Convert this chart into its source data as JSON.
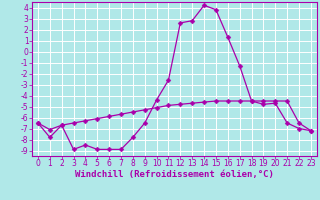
{
  "xlabel": "Windchill (Refroidissement éolien,°C)",
  "x": [
    0,
    1,
    2,
    3,
    4,
    5,
    6,
    7,
    8,
    9,
    10,
    11,
    12,
    13,
    14,
    15,
    16,
    17,
    18,
    19,
    20,
    21,
    22,
    23
  ],
  "curve1": [
    -6.5,
    -7.8,
    -6.7,
    -8.9,
    -8.5,
    -8.9,
    -8.9,
    -8.9,
    -7.8,
    -6.5,
    -4.4,
    -2.6,
    2.6,
    2.8,
    4.2,
    3.8,
    1.3,
    -1.3,
    -4.5,
    -4.8,
    -4.7,
    -6.5,
    -7.0,
    -7.2
  ],
  "curve2": [
    -6.5,
    -7.1,
    -6.7,
    -6.5,
    -6.3,
    -6.1,
    -5.9,
    -5.7,
    -5.5,
    -5.3,
    -5.1,
    -4.9,
    -4.8,
    -4.7,
    -4.6,
    -4.5,
    -4.5,
    -4.5,
    -4.5,
    -4.5,
    -4.5,
    -4.5,
    -6.5,
    -7.2
  ],
  "line_color": "#aa00aa",
  "marker": "D",
  "markersize": 2.5,
  "bg_color": "#b0e8e8",
  "grid_color": "#ffffff",
  "xlim": [
    -0.5,
    23.5
  ],
  "ylim": [
    -9.5,
    4.5
  ],
  "yticks": [
    4,
    3,
    2,
    1,
    0,
    -1,
    -2,
    -3,
    -4,
    -5,
    -6,
    -7,
    -8,
    -9
  ],
  "xticks": [
    0,
    1,
    2,
    3,
    4,
    5,
    6,
    7,
    8,
    9,
    10,
    11,
    12,
    13,
    14,
    15,
    16,
    17,
    18,
    19,
    20,
    21,
    22,
    23
  ],
  "tick_fontsize": 5.5,
  "xlabel_fontsize": 6.5
}
